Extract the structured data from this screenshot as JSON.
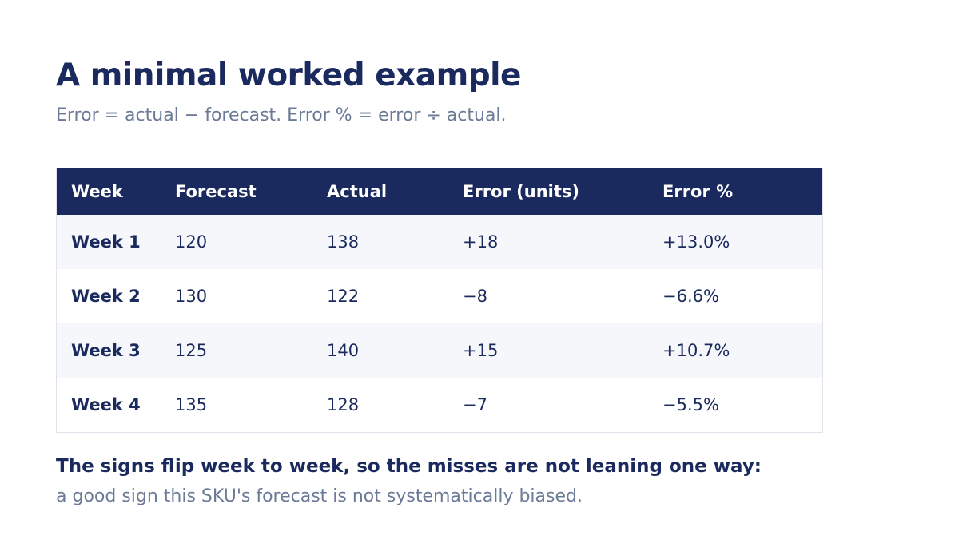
{
  "title": "A minimal worked example",
  "subtitle": "Error = actual − forecast. Error % = error ÷ actual.",
  "table": {
    "headers": [
      "Week",
      "Forecast",
      "Actual",
      "Error (units)",
      "Error %"
    ],
    "rows": [
      {
        "week": "Week 1",
        "forecast": "120",
        "actual": "138",
        "error_units": "+18",
        "error_pct": "+13.0%"
      },
      {
        "week": "Week 2",
        "forecast": "130",
        "actual": "122",
        "error_units": "−8",
        "error_pct": "−6.6%"
      },
      {
        "week": "Week 3",
        "forecast": "125",
        "actual": "140",
        "error_units": "+15",
        "error_pct": "+10.7%"
      },
      {
        "week": "Week 4",
        "forecast": "135",
        "actual": "128",
        "error_units": "−7",
        "error_pct": "−5.5%"
      }
    ]
  },
  "note": {
    "strong": "The signs flip week to week, so the misses are not leaning one way:",
    "light": "a good sign this SKU's forecast is not systematically biased."
  },
  "colors": {
    "navy": "#1b2a5e",
    "muted": "#6b7a96",
    "row_alt": "#f5f7fb"
  }
}
